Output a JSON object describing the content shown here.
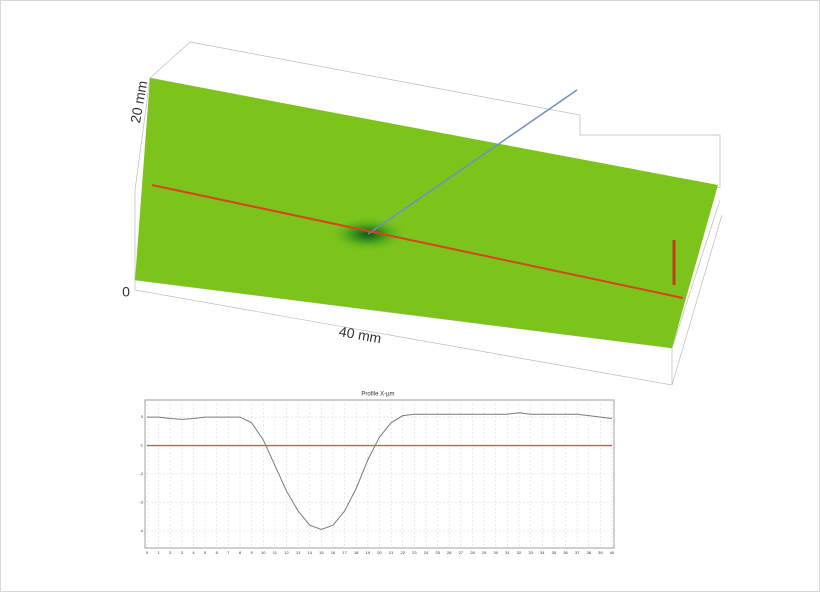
{
  "surface": {
    "z_label": "20 mm",
    "origin_label": "0",
    "x_label": "40 mm"
  },
  "chart_data": {
    "type": "line",
    "title": "Profile X-µm",
    "x": [
      0,
      1,
      2,
      3,
      4,
      5,
      6,
      7,
      8,
      9,
      10,
      11,
      12,
      13,
      14,
      15,
      16,
      17,
      18,
      19,
      20,
      21,
      22,
      23,
      24,
      25,
      26,
      27,
      28,
      29,
      30,
      31,
      32,
      33,
      34,
      35,
      36,
      37,
      38,
      39,
      40
    ],
    "series": [
      {
        "name": "Profile",
        "color": "#7a7a7a",
        "values": [
          0,
          0,
          -0.05,
          -0.08,
          -0.05,
          0,
          0,
          0,
          0,
          -0.2,
          -0.8,
          -1.7,
          -2.6,
          -3.3,
          -3.8,
          -3.95,
          -3.8,
          -3.3,
          -2.5,
          -1.5,
          -0.7,
          -0.2,
          0.05,
          0.1,
          0.1,
          0.1,
          0.1,
          0.1,
          0.1,
          0.1,
          0.1,
          0.1,
          0.15,
          0.1,
          0.1,
          0.1,
          0.1,
          0.1,
          0.05,
          0,
          -0.05
        ]
      }
    ],
    "reference": -1,
    "reference_color": "#d9534f",
    "xlim": [
      0,
      40
    ],
    "ylim": [
      -4.6,
      0.6
    ],
    "xticks": [
      0,
      1,
      2,
      3,
      4,
      5,
      6,
      7,
      8,
      9,
      10,
      11,
      12,
      13,
      14,
      15,
      16,
      17,
      18,
      19,
      20,
      21,
      22,
      23,
      24,
      25,
      26,
      27,
      28,
      29,
      30,
      31,
      32,
      33,
      34,
      35,
      36,
      37,
      38,
      39,
      40
    ],
    "yticks": [
      0,
      -1,
      -2,
      -3,
      -4
    ],
    "grid": true
  }
}
